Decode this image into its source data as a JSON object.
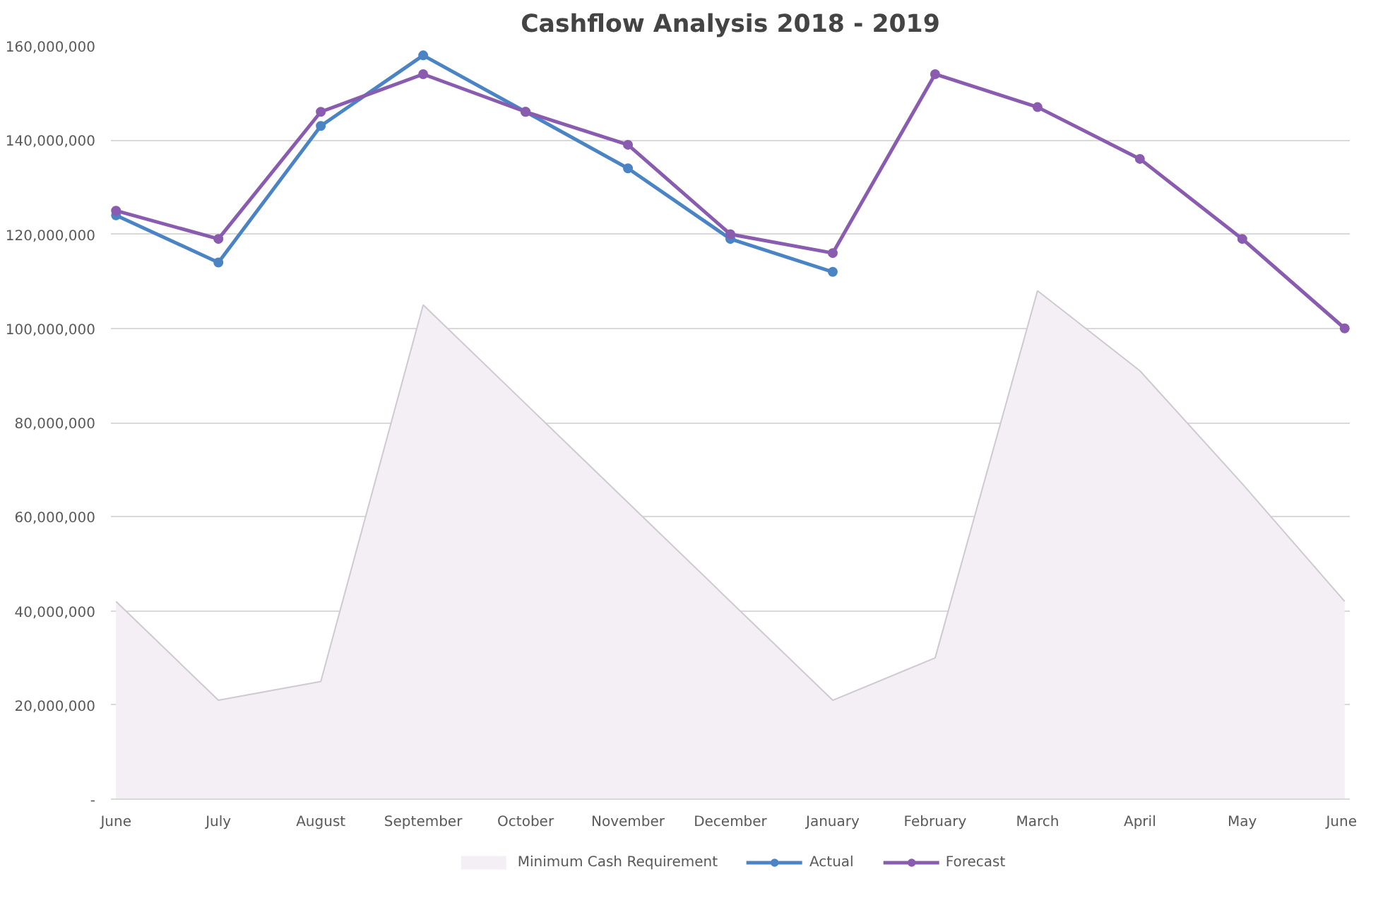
{
  "chart_data": {
    "type": "line",
    "title": "Cashflow Analysis 2018 - 2019",
    "categories": [
      "June",
      "July",
      "August",
      "September",
      "October",
      "November",
      "December",
      "January",
      "February",
      "March",
      "April",
      "May",
      "June"
    ],
    "series": [
      {
        "name": "Minimum Cash Requirement",
        "type": "area",
        "marker": "none",
        "color": "#f3eff4",
        "values": [
          42000000,
          21000000,
          25000000,
          105000000,
          84000000,
          63000000,
          42000000,
          21000000,
          30000000,
          108000000,
          91000000,
          67000000,
          42000000
        ]
      },
      {
        "name": "Actual",
        "color": "#4a84c4",
        "values": [
          124000000,
          114000000,
          143000000,
          158000000,
          146000000,
          134000000,
          119000000,
          112000000,
          null,
          null,
          null,
          null,
          null
        ]
      },
      {
        "name": "Forecast",
        "color": "#8a5cb0",
        "values": [
          125000000,
          119000000,
          146000000,
          154000000,
          146000000,
          139000000,
          120000000,
          116000000,
          154000000,
          147000000,
          136000000,
          119000000,
          100000000
        ]
      }
    ],
    "ylim": [
      0,
      160000000
    ],
    "yticks": [
      {
        "value": 0,
        "label": "-"
      },
      {
        "value": 20000000,
        "label": "20,000,000"
      },
      {
        "value": 40000000,
        "label": "40,000,000"
      },
      {
        "value": 60000000,
        "label": "60,000,000"
      },
      {
        "value": 80000000,
        "label": "80,000,000"
      },
      {
        "value": 100000000,
        "label": "100,000,000"
      },
      {
        "value": 120000000,
        "label": "120,000,000"
      },
      {
        "value": 140000000,
        "label": "140,000,000"
      },
      {
        "value": 160000000,
        "label": "160,000,000"
      }
    ],
    "grid": "y",
    "legend": "bottom",
    "marker": "circle",
    "line_style": "solid"
  }
}
